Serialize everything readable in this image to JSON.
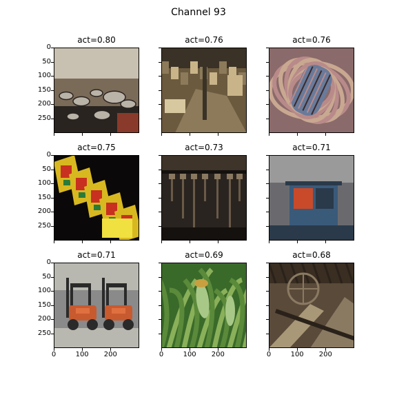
{
  "title": "Channel 93",
  "chart_data": {
    "type": "image-grid",
    "title": "Channel 93",
    "rows": 3,
    "cols": 3,
    "xlim": [
      0,
      299
    ],
    "ylim": [
      299,
      0
    ],
    "xticks": [
      0,
      100,
      200
    ],
    "yticks": [
      0,
      50,
      100,
      150,
      200,
      250
    ],
    "panels": [
      {
        "title": "act=0.80",
        "act": 0.8,
        "scene": "market-cookware",
        "colors": [
          "#7a6a58",
          "#2a2420",
          "#b9b3a8",
          "#8a3a2a",
          "#c8c0b0"
        ]
      },
      {
        "title": "act=0.76",
        "act": 0.76,
        "scene": "antique-shop",
        "colors": [
          "#6b5a3e",
          "#3a3226",
          "#c9b48a",
          "#8c7a5a",
          "#d8c8a0"
        ]
      },
      {
        "title": "act=0.76",
        "act": 0.76,
        "scene": "yarn-spool",
        "colors": [
          "#8a6a6a",
          "#b98a8a",
          "#6a7a9a",
          "#3a2a2a",
          "#c8a890"
        ]
      },
      {
        "title": "act=0.75",
        "act": 0.75,
        "scene": "slot-machines",
        "colors": [
          "#0a0808",
          "#d8b820",
          "#c83020",
          "#2a7a3a",
          "#f0e040"
        ]
      },
      {
        "title": "act=0.73",
        "act": 0.73,
        "scene": "hanging-tools",
        "colors": [
          "#2a2420",
          "#14110e",
          "#6a5a48",
          "#3e342a",
          "#8a7860"
        ]
      },
      {
        "title": "act=0.71",
        "act": 0.71,
        "scene": "vending-kiosk",
        "colors": [
          "#6a6a6e",
          "#3a5a7a",
          "#c84a2a",
          "#9a9a9a",
          "#2a3a4a"
        ]
      },
      {
        "title": "act=0.71",
        "act": 0.71,
        "scene": "forklifts",
        "colors": [
          "#8a8a8a",
          "#c85a30",
          "#2a2a2a",
          "#b8b8b0",
          "#e07040"
        ]
      },
      {
        "title": "act=0.69",
        "act": 0.69,
        "scene": "corn-plants",
        "colors": [
          "#3a6a2a",
          "#8ab05a",
          "#c8a040",
          "#5a8a3a",
          "#a8c888"
        ]
      },
      {
        "title": "act=0.68",
        "act": 0.68,
        "scene": "wooden-machinery",
        "colors": [
          "#5a4a3a",
          "#3a2e22",
          "#8a7a62",
          "#2a221a",
          "#a89878"
        ]
      }
    ]
  }
}
